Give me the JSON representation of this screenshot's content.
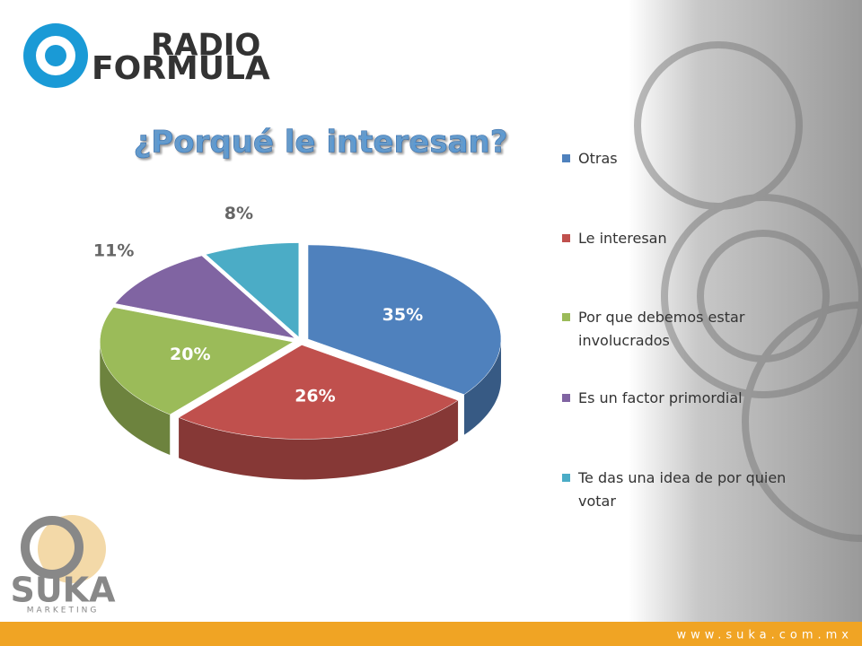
{
  "brand": {
    "radio": "RADIO",
    "formula": "FORMULA",
    "suka": "SUKA",
    "marketing": "MARKETING",
    "website": "www.suka.com.mx"
  },
  "chart_data": {
    "type": "pie",
    "title": "¿Porqué le interesan?",
    "categories": [
      "Otras",
      "Le interesan",
      "Por que debemos estar involucrados",
      "Es un factor primordial",
      "Te das una idea de por quien votar"
    ],
    "values": [
      35,
      26,
      20,
      11,
      8
    ],
    "value_labels": [
      "35%",
      "26%",
      "20%",
      "11%",
      "8%"
    ],
    "colors": [
      "#4f81bd",
      "#c0504d",
      "#9bbb59",
      "#8064a2",
      "#4bacc6"
    ],
    "legend": "right"
  }
}
